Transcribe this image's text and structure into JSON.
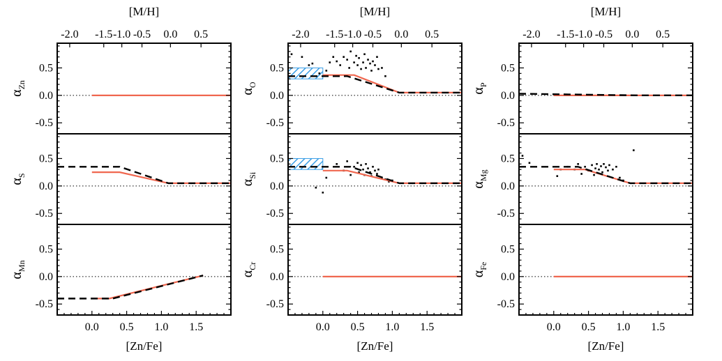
{
  "colors": {
    "model_line": "#f0674f",
    "fit_line": "#000000",
    "hatch": "#3a9ee6",
    "points": "#000000",
    "zero_line": "#000000"
  },
  "chart_data": {
    "type": "line",
    "layout": "3 columns x 3 rows of panels sharing x axes",
    "xlabel": "[Zn/Fe]",
    "top_xlabel": "[M/H]",
    "xlim": [
      -0.5,
      2.0
    ],
    "ylim": [
      -0.7,
      0.95
    ],
    "xticks": [
      0.0,
      0.5,
      1.0,
      1.5
    ],
    "xtick_labels": [
      "0.0",
      "0.5",
      "1.0",
      "1.5"
    ],
    "yticks": [
      -0.5,
      0.0,
      0.5
    ],
    "ytick_labels": [
      "-0.5",
      "0.0",
      "0.5"
    ],
    "top_ticks": [
      {
        "label": "-2.0",
        "zn": -0.32
      },
      {
        "label": "-1.5",
        "zn": 0.17
      },
      {
        "label": "-1.0",
        "zn": 0.43
      },
      {
        "label": "-0.5",
        "zn": 0.72
      },
      {
        "label": "0.0",
        "zn": 1.13
      },
      {
        "label": "0.5",
        "zn": 1.57
      }
    ],
    "zero_line_style": "dotted",
    "panels": [
      {
        "id": "zn",
        "col": 0,
        "row": 0,
        "ylabel_main": "α",
        "ylabel_sub": "Zn",
        "model": [
          [
            0.0,
            0.0
          ],
          [
            2.0,
            0.0
          ]
        ],
        "fit": [],
        "points": []
      },
      {
        "id": "o",
        "col": 1,
        "row": 0,
        "ylabel_main": "α",
        "ylabel_sub": "O",
        "model": [
          [
            0.0,
            0.37
          ],
          [
            0.45,
            0.37
          ],
          [
            1.1,
            0.05
          ],
          [
            2.0,
            0.05
          ]
        ],
        "fit": [
          [
            -0.5,
            0.35
          ],
          [
            0.35,
            0.35
          ],
          [
            1.1,
            0.05
          ],
          [
            2.0,
            0.05
          ]
        ],
        "hatch": [
          [
            -0.5,
            0.0
          ],
          [
            0.3,
            0.5
          ]
        ],
        "points": [
          [
            -0.45,
            0.75
          ],
          [
            -0.3,
            0.7
          ],
          [
            -0.2,
            0.55
          ],
          [
            -0.05,
            0.4
          ],
          [
            0.05,
            0.45
          ],
          [
            0.1,
            0.6
          ],
          [
            0.15,
            0.7
          ],
          [
            0.2,
            0.62
          ],
          [
            0.25,
            0.55
          ],
          [
            0.3,
            0.7
          ],
          [
            0.35,
            0.65
          ],
          [
            0.38,
            0.5
          ],
          [
            0.4,
            0.8
          ],
          [
            0.45,
            0.6
          ],
          [
            0.48,
            0.72
          ],
          [
            0.5,
            0.55
          ],
          [
            0.52,
            0.68
          ],
          [
            0.55,
            0.48
          ],
          [
            0.58,
            0.6
          ],
          [
            0.6,
            0.75
          ],
          [
            0.62,
            0.5
          ],
          [
            0.65,
            0.65
          ],
          [
            0.68,
            0.58
          ],
          [
            0.7,
            0.45
          ],
          [
            0.72,
            0.62
          ],
          [
            0.75,
            0.55
          ],
          [
            0.78,
            0.7
          ],
          [
            0.8,
            0.48
          ],
          [
            0.85,
            0.5
          ],
          [
            0.9,
            0.35
          ],
          [
            -0.15,
            0.58
          ]
        ]
      },
      {
        "id": "p",
        "col": 2,
        "row": 0,
        "ylabel_main": "α",
        "ylabel_sub": "P",
        "model": [
          [
            0.0,
            0.0
          ],
          [
            2.0,
            0.0
          ]
        ],
        "fit": [
          [
            -0.5,
            0.03
          ],
          [
            1.2,
            0.0
          ],
          [
            2.0,
            0.0
          ]
        ],
        "points": []
      },
      {
        "id": "s",
        "col": 0,
        "row": 1,
        "ylabel_main": "α",
        "ylabel_sub": "S",
        "model": [
          [
            0.0,
            0.25
          ],
          [
            0.4,
            0.25
          ],
          [
            1.1,
            0.05
          ],
          [
            2.0,
            0.05
          ]
        ],
        "fit": [
          [
            -0.5,
            0.35
          ],
          [
            0.4,
            0.35
          ],
          [
            1.1,
            0.05
          ],
          [
            2.0,
            0.05
          ]
        ],
        "points": []
      },
      {
        "id": "si",
        "col": 1,
        "row": 1,
        "ylabel_main": "α",
        "ylabel_sub": "Si",
        "model": [
          [
            0.0,
            0.28
          ],
          [
            0.35,
            0.28
          ],
          [
            1.1,
            0.05
          ],
          [
            2.0,
            0.05
          ]
        ],
        "fit": [
          [
            -0.5,
            0.35
          ],
          [
            0.4,
            0.35
          ],
          [
            1.1,
            0.05
          ],
          [
            2.0,
            0.05
          ]
        ],
        "hatch": [
          [
            -0.5,
            0.0
          ],
          [
            0.3,
            0.5
          ]
        ],
        "points": [
          [
            -0.1,
            -0.03
          ],
          [
            0.0,
            -0.12
          ],
          [
            0.05,
            0.15
          ],
          [
            0.2,
            0.4
          ],
          [
            0.3,
            0.28
          ],
          [
            0.35,
            0.45
          ],
          [
            0.4,
            0.2
          ],
          [
            0.45,
            0.35
          ],
          [
            0.5,
            0.42
          ],
          [
            0.52,
            0.25
          ],
          [
            0.55,
            0.38
          ],
          [
            0.58,
            0.3
          ],
          [
            0.6,
            0.2
          ],
          [
            0.62,
            0.4
          ],
          [
            0.65,
            0.32
          ],
          [
            0.68,
            0.25
          ],
          [
            0.7,
            0.18
          ],
          [
            0.72,
            0.35
          ],
          [
            0.75,
            0.28
          ],
          [
            0.78,
            0.22
          ],
          [
            0.8,
            0.3
          ],
          [
            0.85,
            0.15
          ],
          [
            0.9,
            0.12
          ],
          [
            0.95,
            0.08
          ],
          [
            1.0,
            0.1
          ]
        ]
      },
      {
        "id": "mg",
        "col": 2,
        "row": 1,
        "ylabel_main": "α",
        "ylabel_sub": "Mg",
        "model": [
          [
            0.0,
            0.3
          ],
          [
            0.45,
            0.3
          ],
          [
            1.1,
            0.05
          ],
          [
            2.0,
            0.05
          ]
        ],
        "fit": [
          [
            -0.5,
            0.35
          ],
          [
            0.35,
            0.35
          ],
          [
            1.1,
            0.05
          ],
          [
            2.0,
            0.05
          ]
        ],
        "points": [
          [
            -0.45,
            0.55
          ],
          [
            -0.35,
            0.42
          ],
          [
            0.05,
            0.18
          ],
          [
            0.1,
            0.3
          ],
          [
            0.2,
            0.35
          ],
          [
            0.3,
            0.3
          ],
          [
            0.35,
            0.4
          ],
          [
            0.4,
            0.22
          ],
          [
            0.45,
            0.35
          ],
          [
            0.5,
            0.28
          ],
          [
            0.55,
            0.38
          ],
          [
            0.58,
            0.2
          ],
          [
            0.6,
            0.32
          ],
          [
            0.62,
            0.4
          ],
          [
            0.65,
            0.3
          ],
          [
            0.68,
            0.36
          ],
          [
            0.7,
            0.25
          ],
          [
            0.72,
            0.4
          ],
          [
            0.75,
            0.34
          ],
          [
            0.78,
            0.28
          ],
          [
            0.8,
            0.38
          ],
          [
            0.85,
            0.3
          ],
          [
            0.9,
            0.35
          ],
          [
            0.95,
            0.15
          ],
          [
            1.0,
            0.1
          ],
          [
            1.15,
            0.65
          ]
        ]
      },
      {
        "id": "mn",
        "col": 0,
        "row": 2,
        "ylabel_main": "α",
        "ylabel_sub": "Mn",
        "model": [
          [
            0.0,
            -0.4
          ],
          [
            0.25,
            -0.4
          ],
          [
            1.6,
            0.02
          ]
        ],
        "fit": [
          [
            -0.5,
            -0.4
          ],
          [
            0.3,
            -0.4
          ],
          [
            1.6,
            0.02
          ]
        ],
        "points": []
      },
      {
        "id": "cr",
        "col": 1,
        "row": 2,
        "ylabel_main": "α",
        "ylabel_sub": "Cr",
        "model": [
          [
            0.0,
            0.0
          ],
          [
            2.0,
            0.0
          ]
        ],
        "fit": [],
        "points": []
      },
      {
        "id": "fe",
        "col": 2,
        "row": 2,
        "ylabel_main": "α",
        "ylabel_sub": "Fe",
        "model": [
          [
            0.0,
            0.0
          ],
          [
            2.0,
            0.0
          ]
        ],
        "fit": [],
        "points": []
      }
    ]
  }
}
